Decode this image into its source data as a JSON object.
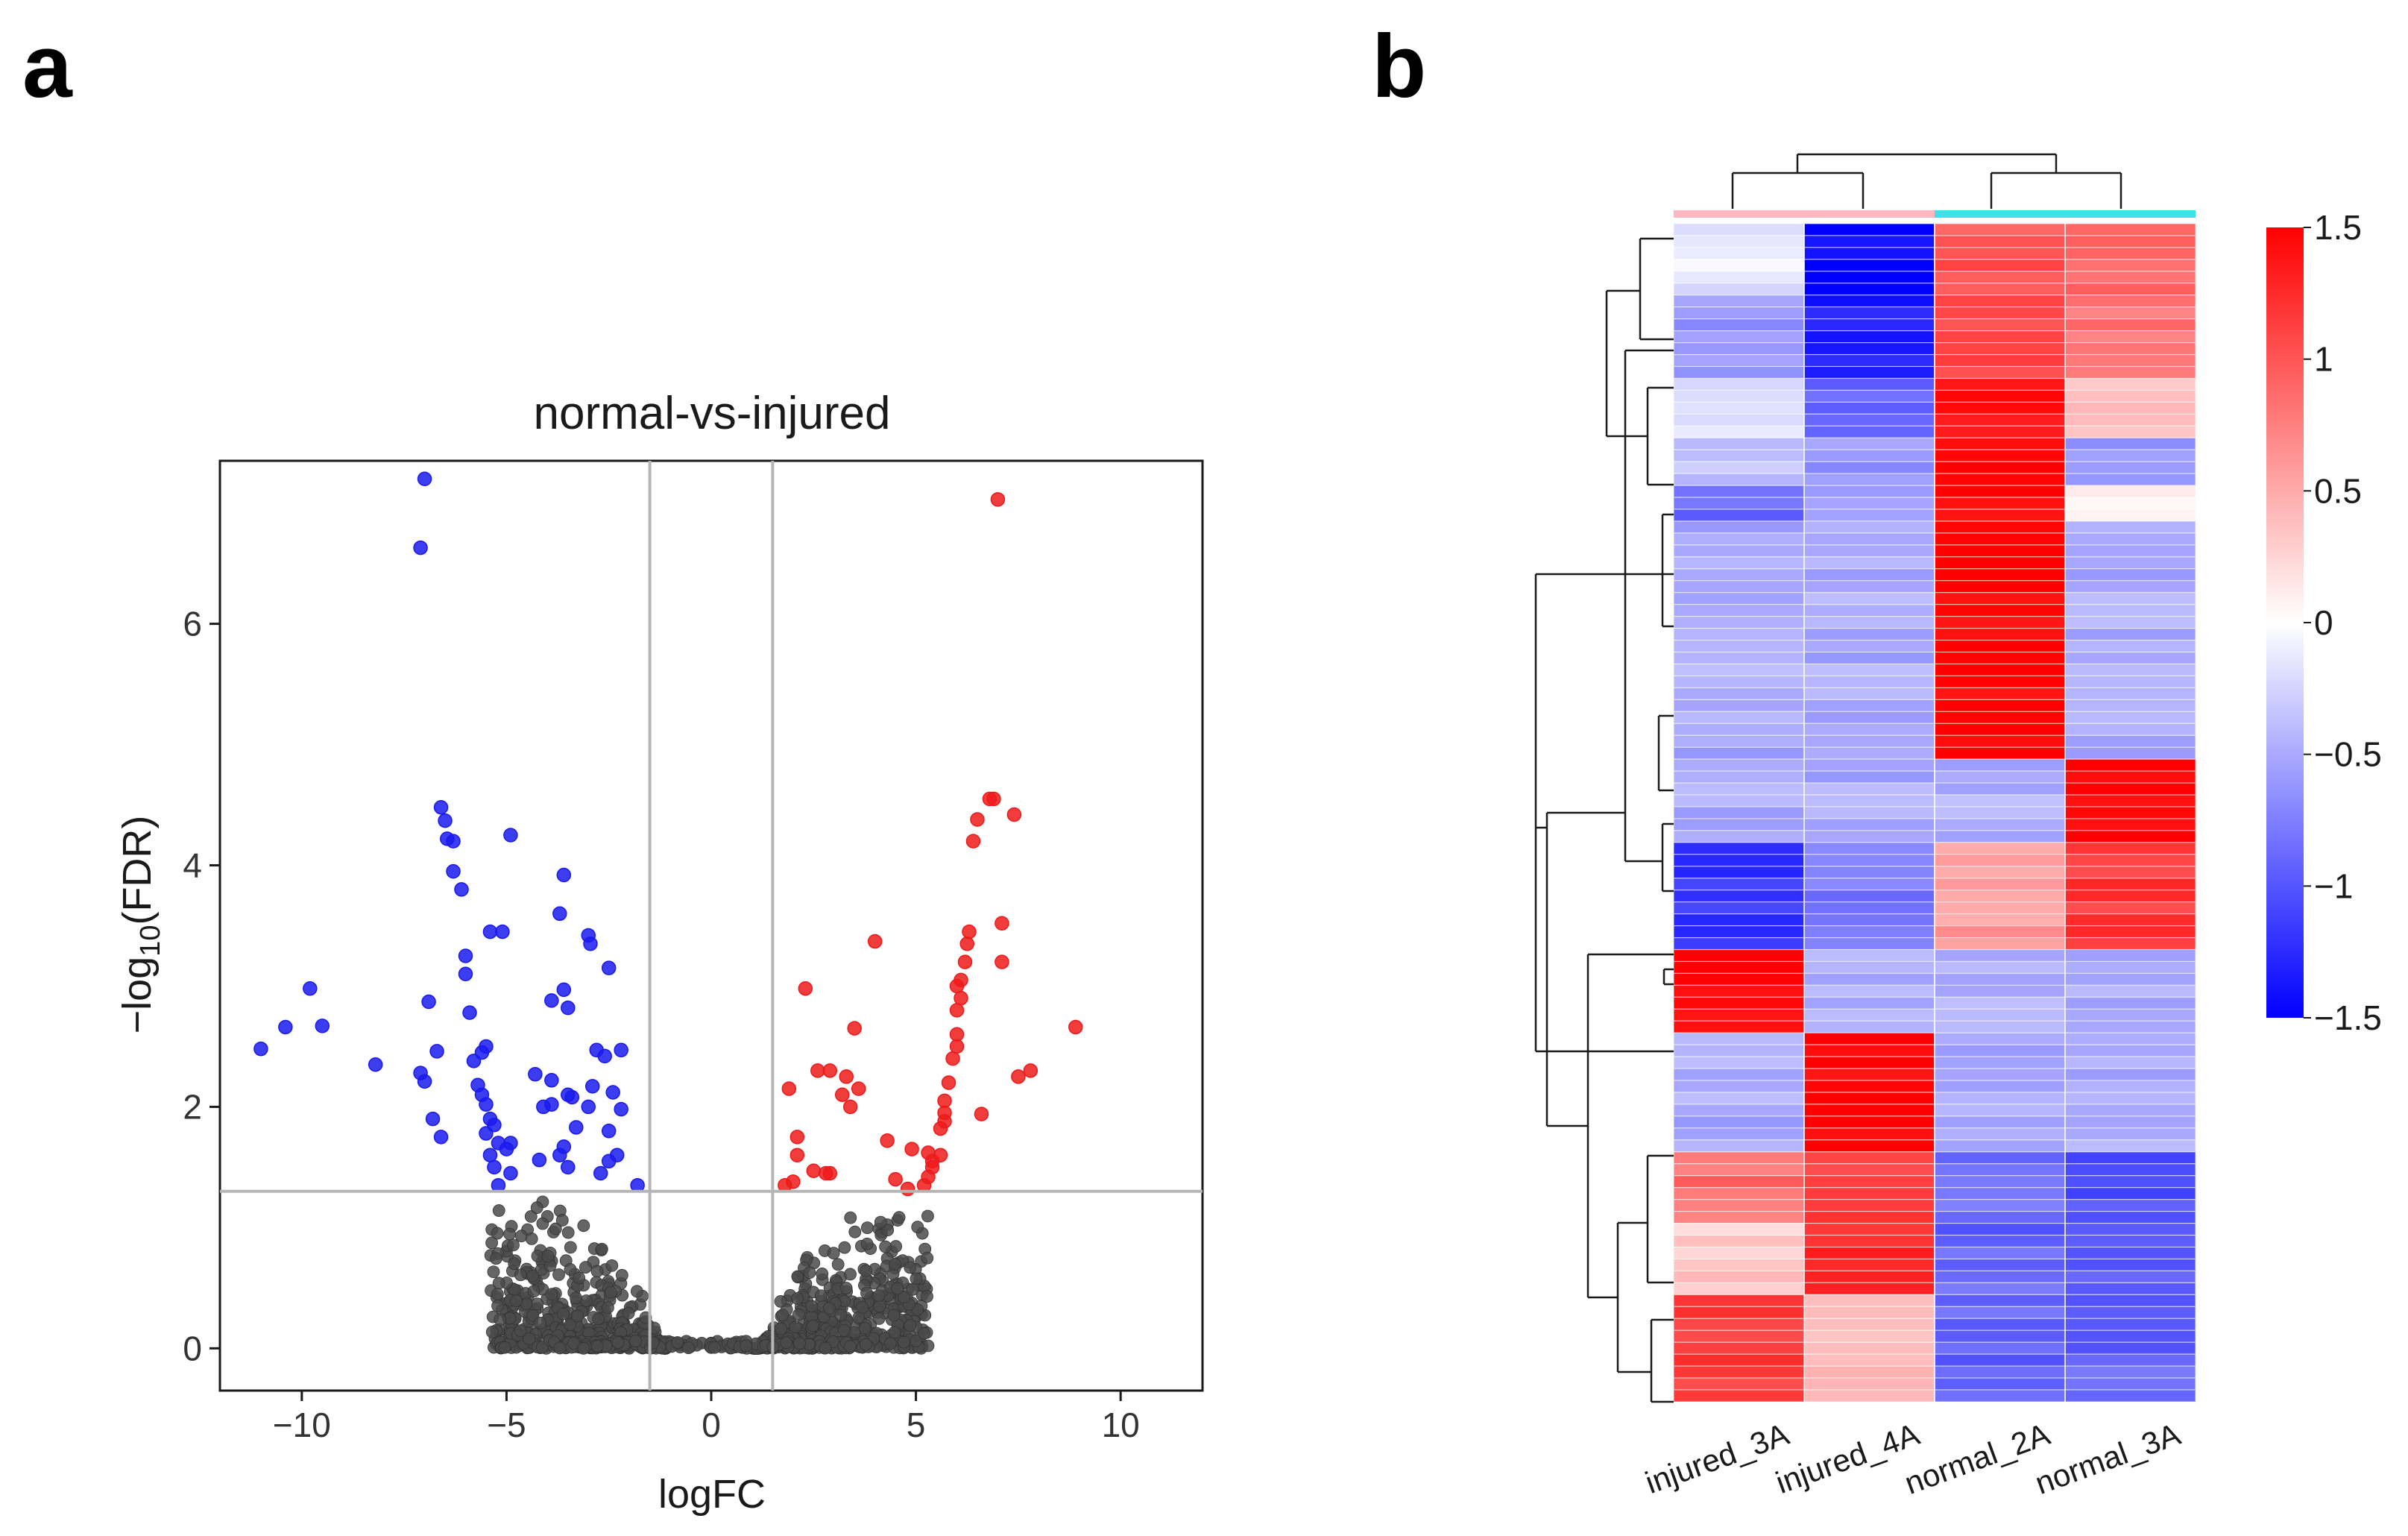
{
  "panels": {
    "a": {
      "letter": "a"
    },
    "b": {
      "letter": "b"
    }
  },
  "chart_data": [
    {
      "type": "scatter",
      "panel": "a",
      "title": "normal-vs-injured",
      "xlabel": "logFC",
      "ylabel_main": "−log",
      "ylabel_sub": "10",
      "ylabel_tail": "(FDR)",
      "xlim": [
        -12,
        12
      ],
      "ylim": [
        -0.35,
        7.35
      ],
      "xticks": [
        -10,
        -5,
        0,
        5,
        10
      ],
      "xtick_labels": [
        "−10",
        "−5",
        "0",
        "5",
        "10"
      ],
      "yticks": [
        0,
        2,
        4,
        6
      ],
      "ytick_labels": [
        "0",
        "2",
        "4",
        "6"
      ],
      "thresholds": {
        "logFC": [
          -1.5,
          1.5
        ],
        "neg_log10_fdr": 1.3
      },
      "colors": {
        "down": "#1a1aee",
        "up": "#ee1a1a",
        "ns": "#4a4a4a"
      },
      "series": [
        {
          "name": "down",
          "points": [
            [
              -7.0,
              7.2
            ],
            [
              -7.1,
              6.63
            ],
            [
              -6.6,
              4.48
            ],
            [
              -6.5,
              4.37
            ],
            [
              -6.45,
              4.22
            ],
            [
              -6.3,
              4.2
            ],
            [
              -4.9,
              4.25
            ],
            [
              -6.3,
              3.95
            ],
            [
              -6.1,
              3.8
            ],
            [
              -3.6,
              3.92
            ],
            [
              -3.7,
              3.6
            ],
            [
              -5.4,
              3.45
            ],
            [
              -5.1,
              3.45
            ],
            [
              -6.0,
              3.25
            ],
            [
              -3.0,
              3.42
            ],
            [
              -2.95,
              3.35
            ],
            [
              -6.0,
              3.1
            ],
            [
              -2.5,
              3.15
            ],
            [
              -3.9,
              2.88
            ],
            [
              -3.6,
              2.97
            ],
            [
              -9.8,
              2.98
            ],
            [
              -10.4,
              2.66
            ],
            [
              -9.5,
              2.67
            ],
            [
              -11.0,
              2.48
            ],
            [
              -6.9,
              2.87
            ],
            [
              -5.9,
              2.78
            ],
            [
              -3.5,
              2.82
            ],
            [
              -5.5,
              2.5
            ],
            [
              -5.6,
              2.45
            ],
            [
              -2.8,
              2.47
            ],
            [
              -2.6,
              2.42
            ],
            [
              -2.2,
              2.47
            ],
            [
              -6.7,
              2.46
            ],
            [
              -5.8,
              2.38
            ],
            [
              -8.2,
              2.35
            ],
            [
              -7.1,
              2.28
            ],
            [
              -4.3,
              2.27
            ],
            [
              -3.9,
              2.22
            ],
            [
              -7.0,
              2.21
            ],
            [
              -5.7,
              2.18
            ],
            [
              -2.9,
              2.17
            ],
            [
              -2.4,
              2.12
            ],
            [
              -3.5,
              2.1
            ],
            [
              -3.4,
              2.08
            ],
            [
              -3.9,
              2.02
            ],
            [
              -5.6,
              2.1
            ],
            [
              -5.5,
              2.02
            ],
            [
              -4.1,
              2.0
            ],
            [
              -3.0,
              2.0
            ],
            [
              -2.2,
              1.98
            ],
            [
              -5.4,
              1.9
            ],
            [
              -6.8,
              1.9
            ],
            [
              -5.3,
              1.85
            ],
            [
              -3.3,
              1.83
            ],
            [
              -2.5,
              1.8
            ],
            [
              -5.5,
              1.78
            ],
            [
              -6.6,
              1.75
            ],
            [
              -5.2,
              1.7
            ],
            [
              -4.9,
              1.7
            ],
            [
              -5.0,
              1.65
            ],
            [
              -3.6,
              1.67
            ],
            [
              -3.7,
              1.6
            ],
            [
              -5.4,
              1.6
            ],
            [
              -2.3,
              1.6
            ],
            [
              -4.2,
              1.56
            ],
            [
              -2.5,
              1.55
            ],
            [
              -5.3,
              1.5
            ],
            [
              -3.5,
              1.5
            ],
            [
              -4.9,
              1.45
            ],
            [
              -2.7,
              1.45
            ],
            [
              -5.2,
              1.35
            ],
            [
              -1.8,
              1.35
            ]
          ]
        },
        {
          "name": "up",
          "points": [
            [
              7.0,
              7.03
            ],
            [
              6.8,
              4.55
            ],
            [
              6.9,
              4.55
            ],
            [
              7.4,
              4.42
            ],
            [
              6.5,
              4.38
            ],
            [
              6.4,
              4.2
            ],
            [
              4.0,
              3.37
            ],
            [
              6.3,
              3.45
            ],
            [
              6.25,
              3.35
            ],
            [
              7.1,
              3.52
            ],
            [
              6.2,
              3.2
            ],
            [
              7.1,
              3.2
            ],
            [
              6.1,
              3.05
            ],
            [
              6.0,
              3.0
            ],
            [
              6.1,
              2.9
            ],
            [
              2.3,
              2.98
            ],
            [
              6.0,
              2.8
            ],
            [
              3.5,
              2.65
            ],
            [
              8.9,
              2.66
            ],
            [
              6.0,
              2.6
            ],
            [
              6.0,
              2.5
            ],
            [
              5.9,
              2.4
            ],
            [
              2.6,
              2.3
            ],
            [
              2.9,
              2.3
            ],
            [
              7.5,
              2.25
            ],
            [
              7.8,
              2.3
            ],
            [
              3.3,
              2.25
            ],
            [
              5.8,
              2.2
            ],
            [
              3.2,
              2.1
            ],
            [
              3.6,
              2.15
            ],
            [
              1.9,
              2.15
            ],
            [
              5.7,
              2.05
            ],
            [
              5.7,
              1.95
            ],
            [
              3.4,
              2.0
            ],
            [
              6.6,
              1.94
            ],
            [
              5.6,
              1.82
            ],
            [
              5.7,
              1.88
            ],
            [
              2.1,
              1.75
            ],
            [
              4.3,
              1.72
            ],
            [
              4.9,
              1.65
            ],
            [
              5.3,
              1.62
            ],
            [
              5.6,
              1.6
            ],
            [
              2.1,
              1.6
            ],
            [
              5.4,
              1.55
            ],
            [
              5.4,
              1.5
            ],
            [
              2.5,
              1.47
            ],
            [
              2.8,
              1.45
            ],
            [
              2.9,
              1.45
            ],
            [
              5.3,
              1.42
            ],
            [
              4.5,
              1.4
            ],
            [
              1.8,
              1.35
            ],
            [
              2.0,
              1.38
            ],
            [
              5.2,
              1.35
            ],
            [
              4.8,
              1.32
            ]
          ]
        }
      ]
    },
    {
      "type": "heatmap",
      "panel": "b",
      "columns": [
        "injured_3A",
        "injured_4A",
        "normal_2A",
        "normal_3A"
      ],
      "group_colors": [
        "#ffb6c1",
        "#ffb6c1",
        "#40e0e8",
        "#40e0e8"
      ],
      "row_blocks": [
        {
          "rows": 6,
          "values": [
            -0.15,
            -1.45,
            1.0,
            0.85
          ]
        },
        {
          "rows": 7,
          "values": [
            -0.6,
            -1.3,
            1.1,
            0.8
          ]
        },
        {
          "rows": 5,
          "values": [
            -0.2,
            -0.9,
            1.45,
            0.3
          ]
        },
        {
          "rows": 4,
          "values": [
            -0.4,
            -0.6,
            1.5,
            -0.6
          ]
        },
        {
          "rows": 3,
          "values": [
            -0.9,
            -0.5,
            1.5,
            0.05
          ]
        },
        {
          "rows": 20,
          "values": [
            -0.5,
            -0.5,
            1.5,
            -0.5
          ]
        },
        {
          "rows": 7,
          "values": [
            -0.5,
            -0.5,
            -0.45,
            1.5
          ]
        },
        {
          "rows": 9,
          "values": [
            -1.2,
            -0.8,
            0.6,
            1.15
          ]
        },
        {
          "rows": 7,
          "values": [
            1.5,
            -0.5,
            -0.5,
            -0.5
          ]
        },
        {
          "rows": 10,
          "values": [
            -0.5,
            1.5,
            -0.5,
            -0.5
          ]
        },
        {
          "rows": 6,
          "values": [
            0.85,
            1.1,
            -0.8,
            -1.0
          ]
        },
        {
          "rows": 6,
          "values": [
            0.3,
            1.25,
            -0.9,
            -0.9
          ]
        },
        {
          "rows": 9,
          "values": [
            1.15,
            0.45,
            -0.9,
            -0.9
          ]
        }
      ],
      "colorbar": {
        "min": -1.5,
        "max": 1.5,
        "ticks": [
          1.5,
          1,
          0.5,
          0,
          -0.5,
          -1,
          -1.5
        ],
        "tick_labels": [
          "1.5",
          "1",
          "0.5",
          "0",
          "−0.5",
          "−1",
          "−1.5"
        ],
        "colors": {
          "low": "#0000ff",
          "mid": "#ffffff",
          "high": "#ff0000"
        }
      }
    }
  ]
}
